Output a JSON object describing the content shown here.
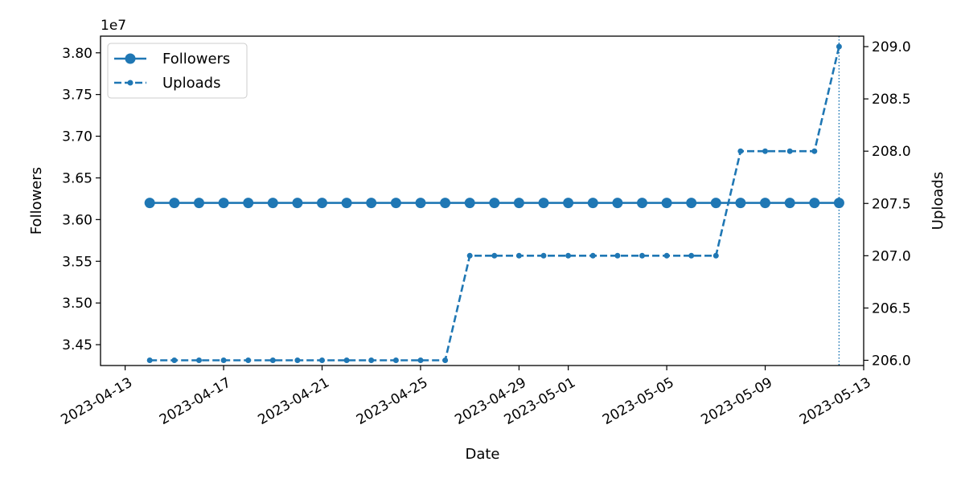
{
  "chart_data": {
    "type": "line",
    "xlabel": "Date",
    "ylabel_left": "Followers",
    "ylabel_right": "Uploads",
    "y_left_offset_label": "1e7",
    "x_tick_labels": [
      "2023-04-13",
      "2023-04-17",
      "2023-04-21",
      "2023-04-25",
      "2023-04-29",
      "2023-05-01",
      "2023-05-05",
      "2023-05-09",
      "2023-05-13"
    ],
    "y_left_tick_labels": [
      "3.45",
      "3.50",
      "3.55",
      "3.60",
      "3.65",
      "3.70",
      "3.75",
      "3.80"
    ],
    "y_right_tick_labels": [
      "206.0",
      "206.5",
      "207.0",
      "207.5",
      "208.0",
      "208.5",
      "209.0"
    ],
    "xlim": [
      "2023-04-12",
      "2023-05-13"
    ],
    "ylim_left": [
      34250000,
      38200000
    ],
    "ylim_right": [
      205.95,
      209.1
    ],
    "legend_position": "top-left",
    "grid": false,
    "highlight_date": "2023-05-12",
    "series": [
      {
        "name": "Followers",
        "axis": "left",
        "color": "#1f77b4",
        "linestyle": "solid",
        "marker": "circle",
        "x": [
          "2023-04-14",
          "2023-04-15",
          "2023-04-16",
          "2023-04-17",
          "2023-04-18",
          "2023-04-19",
          "2023-04-20",
          "2023-04-21",
          "2023-04-22",
          "2023-04-23",
          "2023-04-24",
          "2023-04-25",
          "2023-04-26",
          "2023-04-27",
          "2023-04-28",
          "2023-04-29",
          "2023-04-30",
          "2023-05-01",
          "2023-05-02",
          "2023-05-03",
          "2023-05-04",
          "2023-05-05",
          "2023-05-06",
          "2023-05-07",
          "2023-05-08",
          "2023-05-09",
          "2023-05-10",
          "2023-05-11",
          "2023-05-12"
        ],
        "values": [
          36200000,
          36200000,
          36200000,
          36200000,
          36200000,
          36200000,
          36200000,
          36200000,
          36200000,
          36200000,
          36200000,
          36200000,
          36200000,
          36200000,
          36200000,
          36200000,
          36200000,
          36200000,
          36200000,
          36200000,
          36200000,
          36200000,
          36200000,
          36200000,
          36200000,
          36200000,
          36200000,
          36200000,
          36200000
        ]
      },
      {
        "name": "Uploads",
        "axis": "right",
        "color": "#1f77b4",
        "linestyle": "dashed",
        "marker": "small-circle",
        "x": [
          "2023-04-14",
          "2023-04-15",
          "2023-04-16",
          "2023-04-17",
          "2023-04-18",
          "2023-04-19",
          "2023-04-20",
          "2023-04-21",
          "2023-04-22",
          "2023-04-23",
          "2023-04-24",
          "2023-04-25",
          "2023-04-26",
          "2023-04-27",
          "2023-04-28",
          "2023-04-29",
          "2023-04-30",
          "2023-05-01",
          "2023-05-02",
          "2023-05-03",
          "2023-05-04",
          "2023-05-05",
          "2023-05-06",
          "2023-05-07",
          "2023-05-08",
          "2023-05-09",
          "2023-05-10",
          "2023-05-11",
          "2023-05-12"
        ],
        "values": [
          206,
          206,
          206,
          206,
          206,
          206,
          206,
          206,
          206,
          206,
          206,
          206,
          206,
          207,
          207,
          207,
          207,
          207,
          207,
          207,
          207,
          207,
          207,
          207,
          208,
          208,
          208,
          208,
          209
        ]
      }
    ]
  }
}
